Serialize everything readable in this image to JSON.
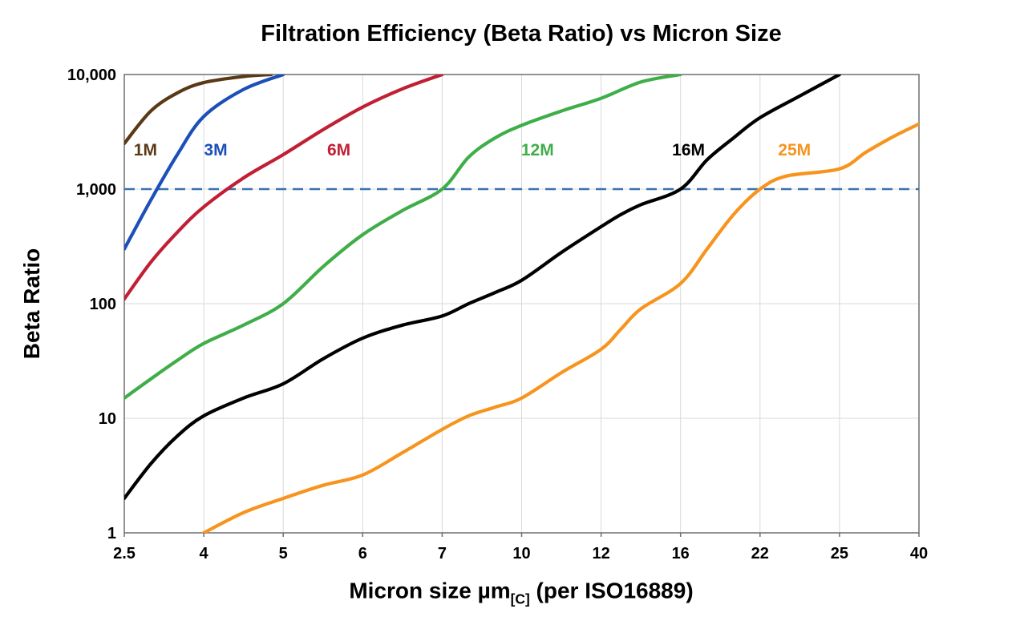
{
  "chart_data": {
    "type": "line",
    "title": "Filtration Efficiency (Beta Ratio) vs Micron Size",
    "ylabel": "Beta Ratio",
    "xlabel": {
      "main": "Micron size µm",
      "sub": "[C]",
      "suffix": " (per ISO16889)"
    },
    "y_scale": "log",
    "ylim": [
      1,
      10000
    ],
    "grid": true,
    "grid_color": "#d9d9d9",
    "axis_color": "#6e6e6e",
    "x_ticks": [
      2.5,
      4,
      5,
      6,
      7,
      10,
      12,
      16,
      22,
      25,
      40
    ],
    "x_tick_labels": [
      "2.5",
      "4",
      "5",
      "6",
      "7",
      "10",
      "12",
      "16",
      "22",
      "25",
      "40"
    ],
    "y_ticks": [
      1,
      10,
      100,
      1000,
      10000
    ],
    "y_tick_labels": [
      "1",
      "10",
      "100",
      "1,000",
      "10,000"
    ],
    "reference_line": {
      "y": 1000,
      "style": "dashed",
      "color": "#3b72b0"
    },
    "series": [
      {
        "name": "1M",
        "color": "#5a3a16",
        "label_pos": {
          "x": 2.9,
          "y": 2200
        },
        "points": [
          [
            2.5,
            2500
          ],
          [
            3,
            4800
          ],
          [
            3.5,
            6900
          ],
          [
            4,
            8500
          ],
          [
            4.5,
            9600
          ],
          [
            4.85,
            10000
          ]
        ]
      },
      {
        "name": "3M",
        "color": "#1c50b8",
        "label_pos": {
          "x": 4.15,
          "y": 2200
        },
        "points": [
          [
            2.5,
            300
          ],
          [
            3,
            800
          ],
          [
            3.5,
            2000
          ],
          [
            4,
            4300
          ],
          [
            4.5,
            7400
          ],
          [
            5,
            10000
          ]
        ]
      },
      {
        "name": "6M",
        "color": "#c01f34",
        "label_pos": {
          "x": 5.7,
          "y": 2200
        },
        "points": [
          [
            2.5,
            110
          ],
          [
            3,
            230
          ],
          [
            3.5,
            420
          ],
          [
            4,
            700
          ],
          [
            4.5,
            1250
          ],
          [
            5,
            2000
          ],
          [
            5.5,
            3300
          ],
          [
            6,
            5200
          ],
          [
            6.5,
            7500
          ],
          [
            7,
            10000
          ]
        ]
      },
      {
        "name": "12M",
        "color": "#3fae49",
        "label_pos": {
          "x": 10.4,
          "y": 2200
        },
        "points": [
          [
            2.5,
            15
          ],
          [
            3,
            22
          ],
          [
            3.5,
            32
          ],
          [
            4,
            45
          ],
          [
            4.5,
            65
          ],
          [
            5,
            100
          ],
          [
            5.5,
            210
          ],
          [
            6,
            400
          ],
          [
            6.5,
            650
          ],
          [
            7,
            1000
          ],
          [
            8,
            1900
          ],
          [
            9,
            2800
          ],
          [
            10,
            3600
          ],
          [
            11,
            4800
          ],
          [
            12,
            6200
          ],
          [
            14,
            8600
          ],
          [
            16,
            10000
          ]
        ]
      },
      {
        "name": "16M",
        "color": "#000000",
        "label_pos": {
          "x": 16.6,
          "y": 2200
        },
        "points": [
          [
            2.5,
            2
          ],
          [
            3,
            4
          ],
          [
            3.5,
            7
          ],
          [
            4,
            10.5
          ],
          [
            4.5,
            15
          ],
          [
            5,
            20
          ],
          [
            5.5,
            33
          ],
          [
            6,
            50
          ],
          [
            6.5,
            65
          ],
          [
            7,
            78
          ],
          [
            8,
            100
          ],
          [
            9,
            125
          ],
          [
            10,
            160
          ],
          [
            11,
            280
          ],
          [
            12,
            470
          ],
          [
            13,
            600
          ],
          [
            14,
            730
          ],
          [
            16,
            1000
          ],
          [
            18,
            1800
          ],
          [
            20,
            2800
          ],
          [
            22,
            4200
          ],
          [
            23.5,
            6500
          ],
          [
            25,
            10000
          ]
        ]
      },
      {
        "name": "25M",
        "color": "#f7941d",
        "label_pos": {
          "x": 23.3,
          "y": 2200
        },
        "points": [
          [
            4,
            1
          ],
          [
            4.5,
            1.5
          ],
          [
            5,
            2
          ],
          [
            5.5,
            2.6
          ],
          [
            6,
            3.2
          ],
          [
            6.5,
            5
          ],
          [
            7,
            8
          ],
          [
            8,
            10.5
          ],
          [
            9,
            12.5
          ],
          [
            10,
            15
          ],
          [
            11,
            25
          ],
          [
            12,
            40
          ],
          [
            13,
            60
          ],
          [
            14,
            90
          ],
          [
            16,
            150
          ],
          [
            18,
            300
          ],
          [
            20,
            600
          ],
          [
            22,
            1000
          ],
          [
            23,
            1300
          ],
          [
            25,
            1500
          ],
          [
            30,
            2100
          ],
          [
            35,
            2850
          ],
          [
            40,
            3700
          ]
        ]
      }
    ]
  }
}
